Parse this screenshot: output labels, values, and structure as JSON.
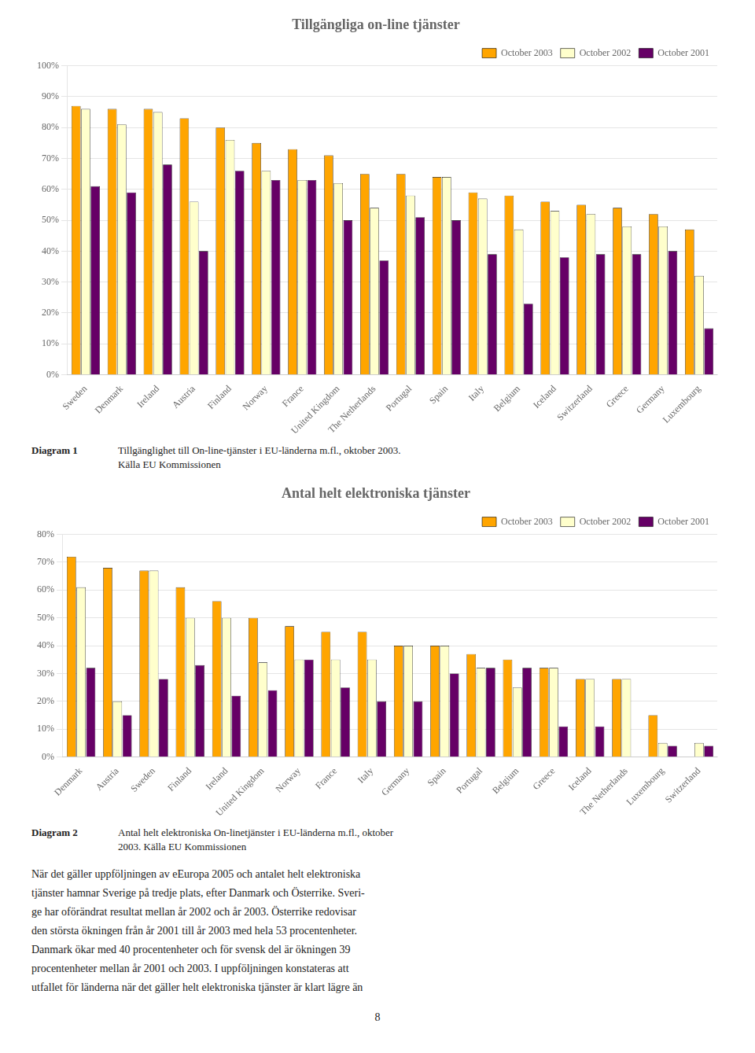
{
  "chart_data": [
    {
      "type": "bar",
      "title": "Tillgängliga on-line tjänster",
      "categories": [
        "Sweden",
        "Denmark",
        "Ireland",
        "Austria",
        "Finland",
        "Norway",
        "France",
        "United Kingdom",
        "The Netherlands",
        "Portugal",
        "Spain",
        "Italy",
        "Belgium",
        "Iceland",
        "Switzerland",
        "Greece",
        "Germany",
        "Luxembourg"
      ],
      "series": [
        {
          "name": "October 2003",
          "color": "#FFA500",
          "values": [
            87,
            86,
            86,
            83,
            80,
            75,
            73,
            71,
            65,
            65,
            64,
            59,
            58,
            56,
            55,
            54,
            52,
            47
          ]
        },
        {
          "name": "October 2002",
          "color": "#FFFFCC",
          "values": [
            86,
            81,
            85,
            56,
            76,
            66,
            63,
            62,
            54,
            58,
            64,
            57,
            47,
            53,
            52,
            48,
            48,
            32
          ]
        },
        {
          "name": "October 2001",
          "color": "#660066",
          "values": [
            61,
            59,
            68,
            40,
            66,
            63,
            63,
            50,
            37,
            51,
            50,
            39,
            23,
            38,
            39,
            39,
            40,
            15
          ]
        }
      ],
      "ylim": [
        0,
        100
      ],
      "yticks": [
        {
          "value": 0,
          "label": "0%"
        },
        {
          "value": 10,
          "label": "10%"
        },
        {
          "value": 20,
          "label": "20%"
        },
        {
          "value": 30,
          "label": "30%"
        },
        {
          "value": 40,
          "label": "40%"
        },
        {
          "value": 50,
          "label": "50%"
        },
        {
          "value": 60,
          "label": "60%"
        },
        {
          "value": 70,
          "label": "70%"
        },
        {
          "value": 80,
          "label": "80%"
        },
        {
          "value": 90,
          "label": "90%"
        },
        {
          "value": 100,
          "label": "100%"
        }
      ],
      "grid": true,
      "legend": "upper right",
      "annotations": [
        "Diagram 1",
        "Tillgänglighet till On-line-tjänster i EU-länderna m.fl., oktober 2003.",
        "Källa EU Kommissionen"
      ]
    },
    {
      "type": "bar",
      "title": "Antal helt elektroniska tjänster",
      "categories": [
        "Denmark",
        "Austria",
        "Sweden",
        "Finland",
        "Ireland",
        "United Kingdom",
        "Norway",
        "France",
        "Italy",
        "Germany",
        "Spain",
        "Portugal",
        "Belgium",
        "Greece",
        "Iceland",
        "The Netherlands",
        "Luxembourg",
        "Switzerland"
      ],
      "series": [
        {
          "name": "October 2003",
          "color": "#FFA500",
          "values": [
            72,
            68,
            67,
            61,
            56,
            50,
            47,
            45,
            45,
            40,
            40,
            37,
            35,
            32,
            28,
            28,
            15,
            0
          ]
        },
        {
          "name": "October 2002",
          "color": "#FFFFCC",
          "values": [
            61,
            20,
            67,
            50,
            50,
            34,
            35,
            35,
            35,
            40,
            40,
            32,
            25,
            32,
            28,
            28,
            5,
            5
          ]
        },
        {
          "name": "October 2001",
          "color": "#660066",
          "values": [
            32,
            15,
            28,
            33,
            22,
            24,
            35,
            25,
            20,
            20,
            30,
            32,
            32,
            11,
            11,
            0,
            4,
            4
          ]
        }
      ],
      "ylim": [
        0,
        80
      ],
      "yticks": [
        {
          "value": 0,
          "label": "0%"
        },
        {
          "value": 10,
          "label": "10%"
        },
        {
          "value": 20,
          "label": "20%"
        },
        {
          "value": 30,
          "label": "30%"
        },
        {
          "value": 40,
          "label": "40%"
        },
        {
          "value": 50,
          "label": "50%"
        },
        {
          "value": 60,
          "label": "60%"
        },
        {
          "value": 70,
          "label": "70%"
        },
        {
          "value": 80,
          "label": "80%"
        }
      ],
      "grid": true,
      "legend": "upper right",
      "annotations": [
        "Diagram 2",
        "Antal helt elektroniska On-linetjänster i EU-länderna m.fl., oktober",
        "2003. Källa EU Kommissionen"
      ]
    }
  ],
  "body_lines": [
    "När det gäller uppföljningen av eEuropa 2005 och antalet helt elektroniska",
    "tjänster hamnar Sverige på tredje plats, efter Danmark och Österrike. Sveri-",
    "ge har oförändrat resultat mellan år 2002 och år 2003. Österrike redovisar",
    "den största ökningen från år 2001 till år 2003 med hela 53 procentenheter.",
    "Danmark ökar med 40 procentenheter och för svensk del är ökningen 39",
    "procentenheter mellan år 2001 och 2003. I uppföljningen konstateras att",
    "utfallet för länderna när det gäller helt elektroniska tjänster är klart lägre än"
  ],
  "page_number": "8"
}
